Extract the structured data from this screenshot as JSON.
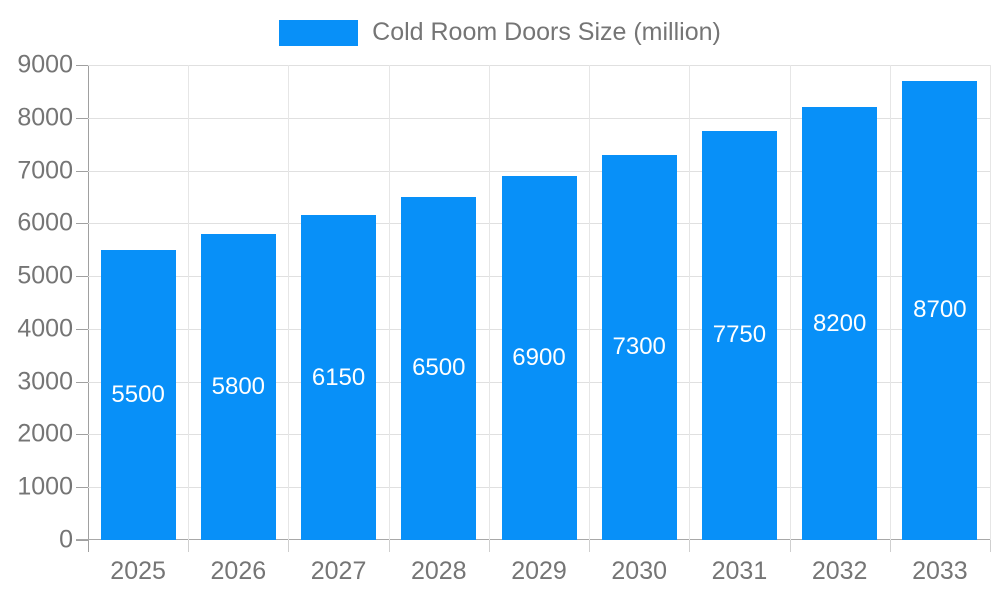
{
  "chart_data": {
    "type": "bar",
    "title": "Cold Room Doors Size (million)",
    "legend": {
      "label": "Cold Room Doors Size (million)",
      "position": "top-center"
    },
    "categories": [
      "2025",
      "2026",
      "2027",
      "2028",
      "2029",
      "2030",
      "2031",
      "2032",
      "2033"
    ],
    "values": [
      5500,
      5800,
      6150,
      6500,
      6900,
      7300,
      7750,
      8200,
      8700
    ],
    "value_labels": [
      "5500",
      "5800",
      "6150",
      "6500",
      "6900",
      "7300",
      "7750",
      "8200",
      "8700"
    ],
    "xlabel": "",
    "ylabel": "",
    "ylim": [
      0,
      9000
    ],
    "y_ticks": [
      0,
      1000,
      2000,
      3000,
      4000,
      5000,
      6000,
      7000,
      8000,
      9000
    ],
    "grid": true,
    "colors": {
      "bar": "#0890f8",
      "grid_line": "#e0e0e0",
      "axis_line": "#a0a0a0",
      "tick_label": "#757575",
      "legend_text": "#757575",
      "value_label": "#ffffff",
      "background": "#ffffff"
    }
  }
}
